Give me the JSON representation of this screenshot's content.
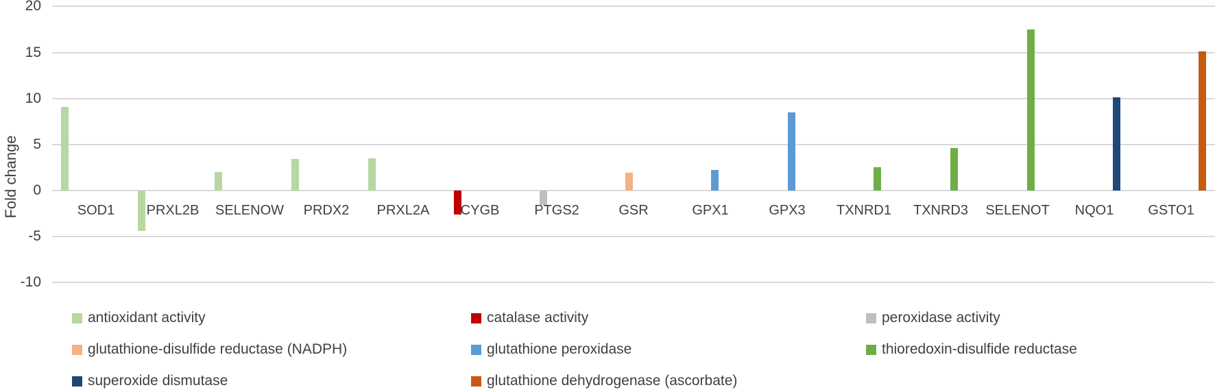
{
  "chart_data": {
    "type": "bar",
    "title": "",
    "ylabel": "Fold change",
    "ylim": [
      -10,
      20
    ],
    "yticks": [
      20,
      15,
      10,
      5,
      0,
      -5,
      -10
    ],
    "grid": true,
    "legend_position": "bottom",
    "categories": [
      "SOD1",
      "PRXL2B",
      "SELENOW",
      "PRDX2",
      "PRXL2A",
      "CYGB",
      "PTGS2",
      "GSR",
      "GPX1",
      "GPX3",
      "TXNRD1",
      "TXNRD3",
      "SELENOT",
      "NQO1",
      "GSTO1"
    ],
    "series": [
      {
        "name": "antioxidant activity",
        "color": "#b7d7a3",
        "values": [
          9.1,
          -4.4,
          2.0,
          3.4,
          3.5,
          null,
          null,
          null,
          null,
          null,
          null,
          null,
          null,
          null,
          null
        ]
      },
      {
        "name": "catalase activity",
        "color": "#c00000",
        "values": [
          null,
          null,
          null,
          null,
          null,
          -2.6,
          null,
          null,
          null,
          null,
          null,
          null,
          null,
          null,
          null
        ]
      },
      {
        "name": "peroxidase activity",
        "color": "#bfbfbf",
        "values": [
          null,
          null,
          null,
          null,
          null,
          null,
          -1.6,
          null,
          null,
          null,
          null,
          null,
          null,
          null,
          null
        ]
      },
      {
        "name": "glutathione-disulfide reductase (NADPH)",
        "color": "#f4b183",
        "values": [
          null,
          null,
          null,
          null,
          null,
          null,
          null,
          1.9,
          null,
          null,
          null,
          null,
          null,
          null,
          null
        ]
      },
      {
        "name": "glutathione peroxidase",
        "color": "#5b9bd5",
        "values": [
          null,
          null,
          null,
          null,
          null,
          null,
          null,
          null,
          2.2,
          8.5,
          null,
          null,
          null,
          null,
          null
        ]
      },
      {
        "name": "thioredoxin-disulfide reductase",
        "color": "#70ad47",
        "values": [
          null,
          null,
          null,
          null,
          null,
          null,
          null,
          null,
          null,
          null,
          2.5,
          4.6,
          17.5,
          null,
          null
        ]
      },
      {
        "name": "superoxide dismutase",
        "color": "#1f4878",
        "values": [
          null,
          null,
          null,
          null,
          null,
          null,
          null,
          null,
          null,
          null,
          null,
          null,
          null,
          10.1,
          null
        ]
      },
      {
        "name": "glutathione dehydrogenase (ascorbate)",
        "color": "#c55a11",
        "values": [
          null,
          null,
          null,
          null,
          null,
          null,
          null,
          null,
          null,
          null,
          null,
          null,
          null,
          null,
          15.1
        ]
      }
    ]
  }
}
